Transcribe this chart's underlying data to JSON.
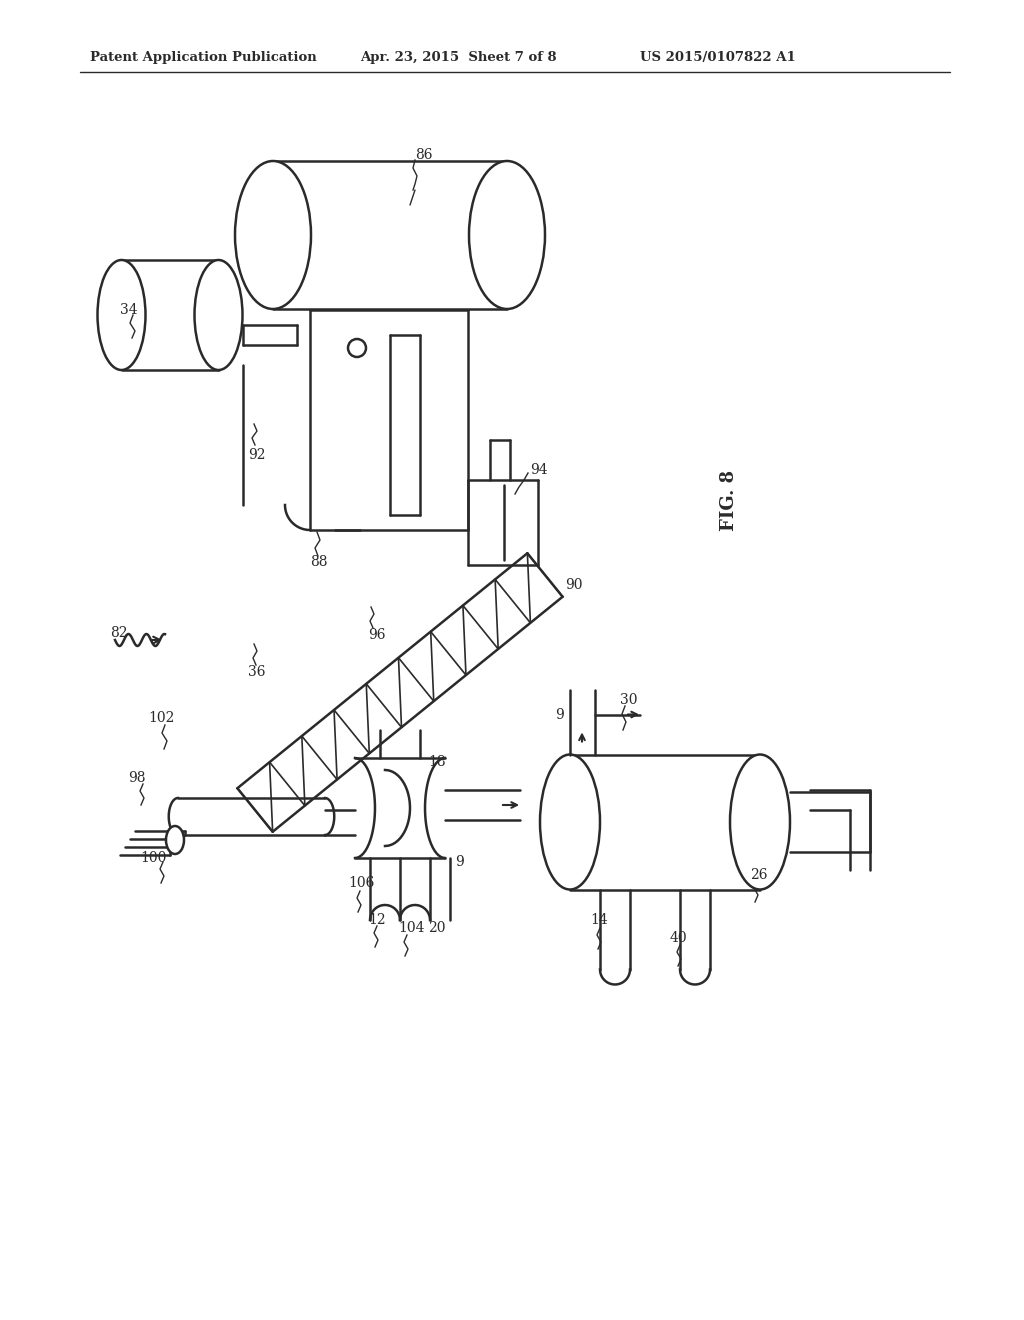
{
  "bg_color": "#ffffff",
  "line_color": "#2a2a2a",
  "header_left": "Patent Application Publication",
  "header_mid": "Apr. 23, 2015  Sheet 7 of 8",
  "header_right": "US 2015/0107822 A1",
  "fig_label": "FIG. 8"
}
